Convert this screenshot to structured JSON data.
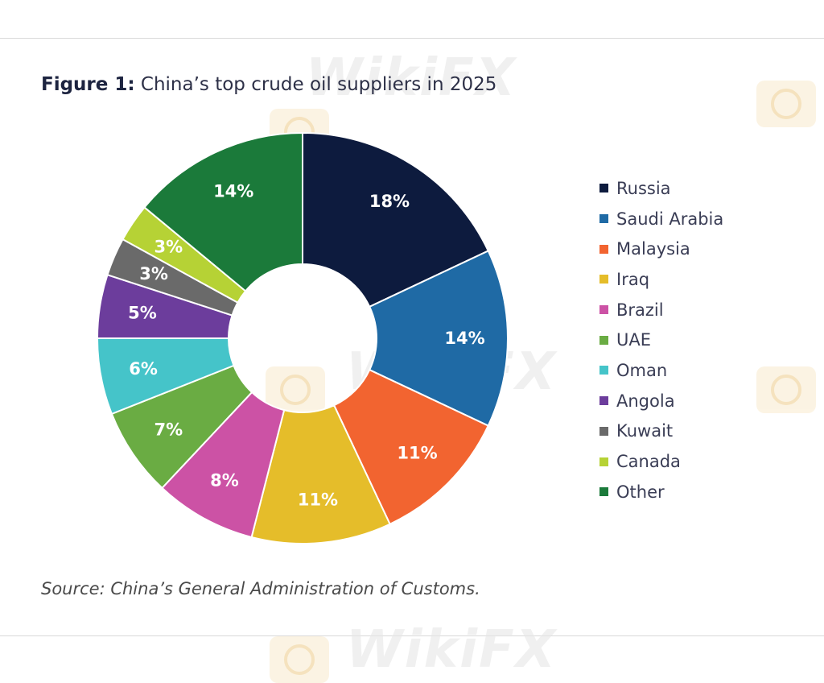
{
  "figure": {
    "label": "Figure 1:",
    "title": "China’s top crude oil suppliers in 2025",
    "source": "Source: China’s General Administration of Customs."
  },
  "watermark": {
    "text": "WikiFX"
  },
  "chart_data": {
    "type": "pie",
    "donut": true,
    "legend_position": "right",
    "slices": [
      {
        "label": "Russia",
        "value": 18,
        "display": "18%",
        "color": "#0d1b3e"
      },
      {
        "label": "Saudi Arabia",
        "value": 14,
        "display": "14%",
        "color": "#1f6aa5"
      },
      {
        "label": "Malaysia",
        "value": 11,
        "display": "11%",
        "color": "#f26430"
      },
      {
        "label": "Iraq",
        "value": 11,
        "display": "11%",
        "color": "#e5bd2a"
      },
      {
        "label": "Brazil",
        "value": 8,
        "display": "8%",
        "color": "#cc52a5"
      },
      {
        "label": "UAE",
        "value": 7,
        "display": "7%",
        "color": "#6aac43"
      },
      {
        "label": "Oman",
        "value": 6,
        "display": "6%",
        "color": "#45c4c9"
      },
      {
        "label": "Angola",
        "value": 5,
        "display": "5%",
        "color": "#6c3d9c"
      },
      {
        "label": "Kuwait",
        "value": 3,
        "display": "3%",
        "color": "#6a6a6a"
      },
      {
        "label": "Canada",
        "value": 3,
        "display": "3%",
        "color": "#b6d235"
      },
      {
        "label": "Other",
        "value": 14,
        "display": "14%",
        "color": "#1b7a3a"
      }
    ]
  }
}
